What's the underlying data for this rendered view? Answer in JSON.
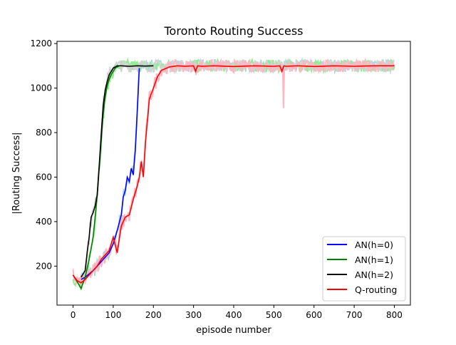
{
  "chart_data": {
    "type": "line",
    "title": "Toronto Routing Success",
    "xlabel": "episode number",
    "ylabel": "|Routing Success|",
    "xlim": [
      -40,
      840
    ],
    "ylim": [
      25,
      1210
    ],
    "xticks": [
      0,
      100,
      200,
      300,
      400,
      500,
      600,
      700,
      800
    ],
    "yticks": [
      200,
      400,
      600,
      800,
      1000,
      1200
    ],
    "grid": false,
    "legend_position": "lower right",
    "series": [
      {
        "name": "AN(h=0)",
        "color": "#0000ff",
        "raw_color": "#add8e6",
        "x": [
          20,
          30,
          40,
          50,
          60,
          70,
          80,
          90,
          100,
          110,
          120,
          125,
          130,
          135,
          140,
          145,
          150,
          155,
          160,
          165
        ],
        "values": [
          140,
          150,
          165,
          180,
          200,
          220,
          240,
          260,
          300,
          360,
          430,
          510,
          540,
          600,
          580,
          640,
          610,
          720,
          900,
          1090
        ]
      },
      {
        "name": "AN(h=1)",
        "color": "#008000",
        "raw_color": "#90ee90",
        "x": [
          0,
          10,
          20,
          30,
          40,
          50,
          55,
          60,
          65,
          70,
          75,
          80,
          85,
          90,
          95,
          100,
          105,
          110,
          115
        ],
        "values": [
          160,
          130,
          100,
          150,
          230,
          330,
          420,
          520,
          640,
          760,
          880,
          960,
          1010,
          1040,
          1060,
          1075,
          1090,
          1095,
          1100
        ]
      },
      {
        "name": "AN(h=2)",
        "color": "#000000",
        "raw_color": "#d3d3d3",
        "x": [
          20,
          25,
          30,
          35,
          40,
          45,
          50,
          55,
          60,
          65,
          70,
          75,
          80,
          85,
          90,
          95,
          100,
          110,
          120,
          140,
          160,
          180,
          200
        ],
        "values": [
          150,
          165,
          180,
          260,
          330,
          420,
          440,
          470,
          520,
          650,
          790,
          920,
          990,
          1030,
          1060,
          1075,
          1090,
          1100,
          1100,
          1098,
          1100,
          1099,
          1100
        ]
      },
      {
        "name": "Q-routing",
        "color": "#ff0000",
        "raw_color": "#ffb6c1",
        "x": [
          0,
          10,
          20,
          30,
          40,
          50,
          60,
          70,
          80,
          90,
          100,
          110,
          120,
          130,
          140,
          150,
          160,
          165,
          170,
          175,
          180,
          185,
          190,
          200,
          210,
          220,
          240,
          260,
          280,
          300,
          305,
          310,
          320,
          350,
          400,
          450,
          500,
          515,
          520,
          525,
          530,
          560,
          600,
          650,
          700,
          750,
          800
        ],
        "values": [
          160,
          135,
          125,
          140,
          160,
          180,
          200,
          230,
          250,
          270,
          330,
          260,
          380,
          420,
          430,
          500,
          560,
          600,
          670,
          600,
          750,
          850,
          950,
          1000,
          1050,
          1080,
          1095,
          1100,
          1098,
          1100,
          1075,
          1100,
          1098,
          1100,
          1097,
          1100,
          1098,
          1100,
          1075,
          1100,
          1098,
          1100,
          1097,
          1100,
          1098,
          1100,
          1100
        ]
      }
    ]
  }
}
